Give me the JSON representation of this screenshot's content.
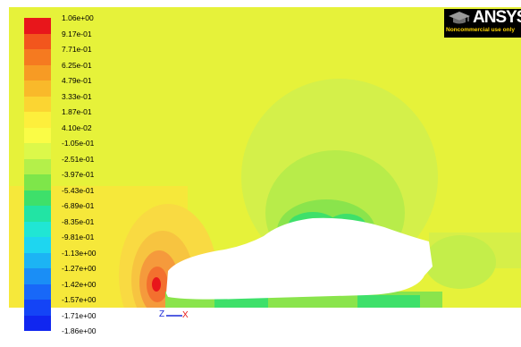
{
  "legend": {
    "levels": [
      {
        "label": "1.06e+00",
        "color": "#e8161b"
      },
      {
        "label": "9.17e-01",
        "color": "#f2561d"
      },
      {
        "label": "7.71e-01",
        "color": "#f57a20"
      },
      {
        "label": "6.25e-01",
        "color": "#f79b24"
      },
      {
        "label": "4.79e-01",
        "color": "#f9b92a"
      },
      {
        "label": "3.33e-01",
        "color": "#fbd532"
      },
      {
        "label": "1.87e-01",
        "color": "#fdef3c"
      },
      {
        "label": "4.10e-02",
        "color": "#fafc46"
      },
      {
        "label": "-1.05e-01",
        "color": "#dcf84a"
      },
      {
        "label": "-2.51e-01",
        "color": "#b4f04a"
      },
      {
        "label": "-3.97e-01",
        "color": "#7ee64a"
      },
      {
        "label": "-5.43e-01",
        "color": "#3ee06a"
      },
      {
        "label": "-6.89e-01",
        "color": "#22e4a4"
      },
      {
        "label": "-8.35e-01",
        "color": "#20e6d4"
      },
      {
        "label": "-9.81e-01",
        "color": "#1ed6f0"
      },
      {
        "label": "-1.13e+00",
        "color": "#1cb4f4"
      },
      {
        "label": "-1.27e+00",
        "color": "#1a8ef6"
      },
      {
        "label": "-1.42e+00",
        "color": "#1868f8"
      },
      {
        "label": "-1.57e+00",
        "color": "#1444f6"
      },
      {
        "label": "-1.71e+00",
        "color": "#1026f0"
      },
      {
        "label": "-1.86e+00",
        "color": null
      }
    ]
  },
  "logo": {
    "text": "ANSYS",
    "subtitle": "Noncommercial use only",
    "icon": "graduation-cap-icon"
  },
  "axis": {
    "z_label": "Z",
    "x_label": "X",
    "x_color": "#e81818",
    "z_color": "#1c2ad8"
  },
  "colors": {
    "background_field": "#e6f23a",
    "car_body": "#ffffff"
  }
}
